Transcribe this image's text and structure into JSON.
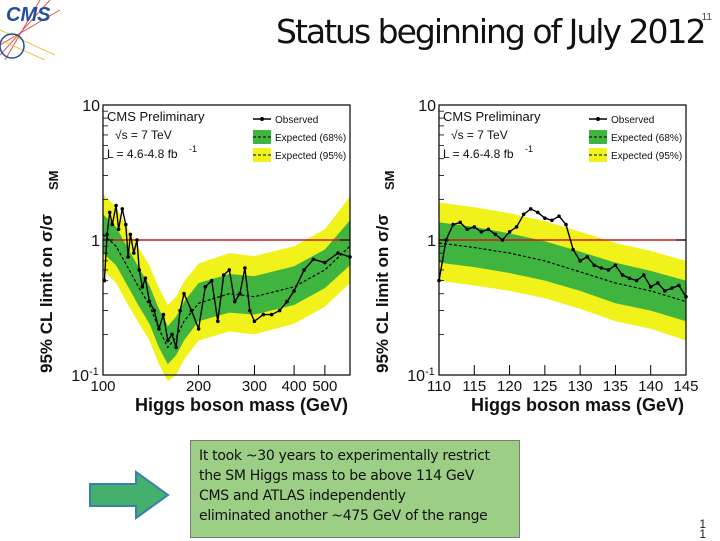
{
  "header": {
    "logo_text": "CMS",
    "title": "Status beginning of July 2012",
    "slide_number": "11"
  },
  "colors": {
    "band95": "#f2f21b",
    "band68": "#3fb53f",
    "line": "#000000",
    "sm_line": "#d01818",
    "note_bg": "#9ccf85",
    "arrow": "#44b06b"
  },
  "chart_data": [
    {
      "type": "line",
      "title": "CMS Preliminary",
      "energy_label": "√s = 7 TeV",
      "lumi_label": "L = 4.6-4.8 fb",
      "lumi_sup": "-1",
      "xlabel": "Higgs boson mass (GeV)",
      "ylabel_main": "95% CL limit on σ/σ",
      "ylabel_sub": "SM",
      "xscale": "log",
      "yscale": "log",
      "xlim": [
        100,
        600
      ],
      "ylim": [
        0.1,
        10
      ],
      "xticks": [
        100,
        200,
        300,
        400,
        500
      ],
      "xtick_labels": [
        "100",
        "200",
        "300",
        "400",
        "500"
      ],
      "yticks": [
        {
          "value": 10,
          "label": "10",
          "sup": ""
        },
        {
          "value": 1,
          "label": "1",
          "sup": ""
        },
        {
          "value": 0.1,
          "label": "10",
          "sup": "-1"
        }
      ],
      "legend": [
        "Observed",
        "Expected (68%)",
        "Expected (95%)"
      ],
      "legend_position": "top-right",
      "sm_reference": 1,
      "expected": {
        "x": [
          100,
          110,
          120,
          130,
          140,
          150,
          160,
          170,
          180,
          200,
          250,
          300,
          400,
          500,
          600
        ],
        "y": [
          1.1,
          0.9,
          0.62,
          0.44,
          0.33,
          0.22,
          0.16,
          0.19,
          0.25,
          0.34,
          0.4,
          0.38,
          0.45,
          0.6,
          0.9
        ]
      },
      "band68": {
        "x": [
          100,
          110,
          120,
          130,
          140,
          150,
          160,
          170,
          180,
          200,
          250,
          300,
          400,
          500,
          600
        ],
        "low": [
          0.8,
          0.65,
          0.45,
          0.32,
          0.24,
          0.16,
          0.12,
          0.14,
          0.18,
          0.25,
          0.29,
          0.28,
          0.33,
          0.44,
          0.65
        ],
        "high": [
          1.55,
          1.25,
          0.86,
          0.62,
          0.46,
          0.31,
          0.23,
          0.27,
          0.35,
          0.48,
          0.56,
          0.54,
          0.64,
          0.85,
          1.4
        ]
      },
      "band95": {
        "x": [
          100,
          110,
          120,
          130,
          140,
          150,
          160,
          170,
          180,
          200,
          250,
          300,
          400,
          500,
          600
        ],
        "low": [
          0.6,
          0.48,
          0.33,
          0.24,
          0.18,
          0.12,
          0.09,
          0.1,
          0.13,
          0.18,
          0.21,
          0.2,
          0.24,
          0.32,
          0.48
        ],
        "high": [
          2.2,
          1.75,
          1.2,
          0.86,
          0.65,
          0.44,
          0.33,
          0.38,
          0.49,
          0.67,
          0.8,
          0.76,
          0.9,
          1.2,
          2.1
        ]
      },
      "observed": {
        "x": [
          101,
          103,
          105,
          107,
          110,
          112,
          115,
          118,
          120,
          122,
          125,
          128,
          130,
          133,
          136,
          140,
          145,
          150,
          155,
          160,
          165,
          170,
          175,
          180,
          190,
          200,
          210,
          220,
          230,
          240,
          250,
          260,
          270,
          280,
          290,
          300,
          320,
          340,
          360,
          380,
          400,
          430,
          460,
          500,
          550,
          600
        ],
        "y": [
          0.5,
          1.1,
          1.6,
          1.3,
          1.8,
          1.2,
          1.7,
          1.3,
          0.75,
          1.1,
          0.8,
          1.0,
          0.6,
          0.45,
          0.52,
          0.35,
          0.3,
          0.22,
          0.28,
          0.18,
          0.2,
          0.16,
          0.3,
          0.4,
          0.3,
          0.22,
          0.45,
          0.5,
          0.25,
          0.55,
          0.6,
          0.35,
          0.4,
          0.62,
          0.3,
          0.25,
          0.28,
          0.28,
          0.3,
          0.35,
          0.42,
          0.6,
          0.72,
          0.68,
          0.8,
          0.75
        ]
      }
    },
    {
      "type": "line",
      "title": "CMS Preliminary",
      "energy_label": "√s = 7 TeV",
      "lumi_label": "L = 4.6-4.8 fb",
      "lumi_sup": "-1",
      "xlabel": "Higgs boson mass (GeV)",
      "ylabel_main": "95% CL limit on σ/σ",
      "ylabel_sub": "SM",
      "xscale": "linear",
      "yscale": "log",
      "xlim": [
        110,
        145
      ],
      "ylim": [
        0.1,
        10
      ],
      "xticks": [
        110,
        115,
        120,
        125,
        130,
        135,
        140,
        145
      ],
      "xtick_labels": [
        "110",
        "115",
        "120",
        "125",
        "130",
        "135",
        "140",
        "145"
      ],
      "yticks": [
        {
          "value": 10,
          "label": "10",
          "sup": ""
        },
        {
          "value": 1,
          "label": "1",
          "sup": ""
        },
        {
          "value": 0.1,
          "label": "10",
          "sup": "-1"
        }
      ],
      "legend": [
        "Observed",
        "Expected (68%)",
        "Expected (95%)"
      ],
      "legend_position": "top-right",
      "sm_reference": 1,
      "expected": {
        "x": [
          110,
          115,
          120,
          125,
          130,
          135,
          140,
          145
        ],
        "y": [
          0.95,
          0.88,
          0.8,
          0.7,
          0.58,
          0.48,
          0.42,
          0.35
        ]
      },
      "band68": {
        "x": [
          110,
          115,
          120,
          125,
          130,
          135,
          140,
          145
        ],
        "low": [
          0.68,
          0.63,
          0.57,
          0.5,
          0.42,
          0.34,
          0.3,
          0.25
        ],
        "high": [
          1.35,
          1.25,
          1.12,
          0.98,
          0.82,
          0.68,
          0.59,
          0.5
        ]
      },
      "band95": {
        "x": [
          110,
          115,
          120,
          125,
          130,
          135,
          140,
          145
        ],
        "low": [
          0.5,
          0.46,
          0.42,
          0.37,
          0.31,
          0.25,
          0.22,
          0.18
        ],
        "high": [
          1.9,
          1.75,
          1.58,
          1.38,
          1.15,
          0.95,
          0.83,
          0.7
        ]
      },
      "observed": {
        "x": [
          110,
          111,
          112,
          113,
          114,
          115,
          116,
          117,
          118,
          119,
          120,
          121,
          122,
          123,
          124,
          125,
          126,
          127,
          128,
          129,
          130,
          131,
          132,
          133,
          134,
          135,
          136,
          137,
          138,
          139,
          140,
          141,
          142,
          143,
          144,
          145
        ],
        "y": [
          0.5,
          1.0,
          1.3,
          1.35,
          1.2,
          1.25,
          1.15,
          1.2,
          1.1,
          1.0,
          1.15,
          1.25,
          1.55,
          1.7,
          1.6,
          1.45,
          1.4,
          1.5,
          1.3,
          0.85,
          0.7,
          0.75,
          0.65,
          0.62,
          0.6,
          0.65,
          0.55,
          0.52,
          0.5,
          0.55,
          0.45,
          0.48,
          0.42,
          0.44,
          0.46,
          0.38
        ]
      }
    }
  ],
  "note": {
    "lines": [
      "It took ~30 years to experimentally restrict",
      "the SM Higgs mass to be above 114 GeV",
      "CMS and ATLAS independently",
      "eliminated another ~475 GeV of the range"
    ]
  },
  "footer": {
    "page_number": "1\n1"
  }
}
